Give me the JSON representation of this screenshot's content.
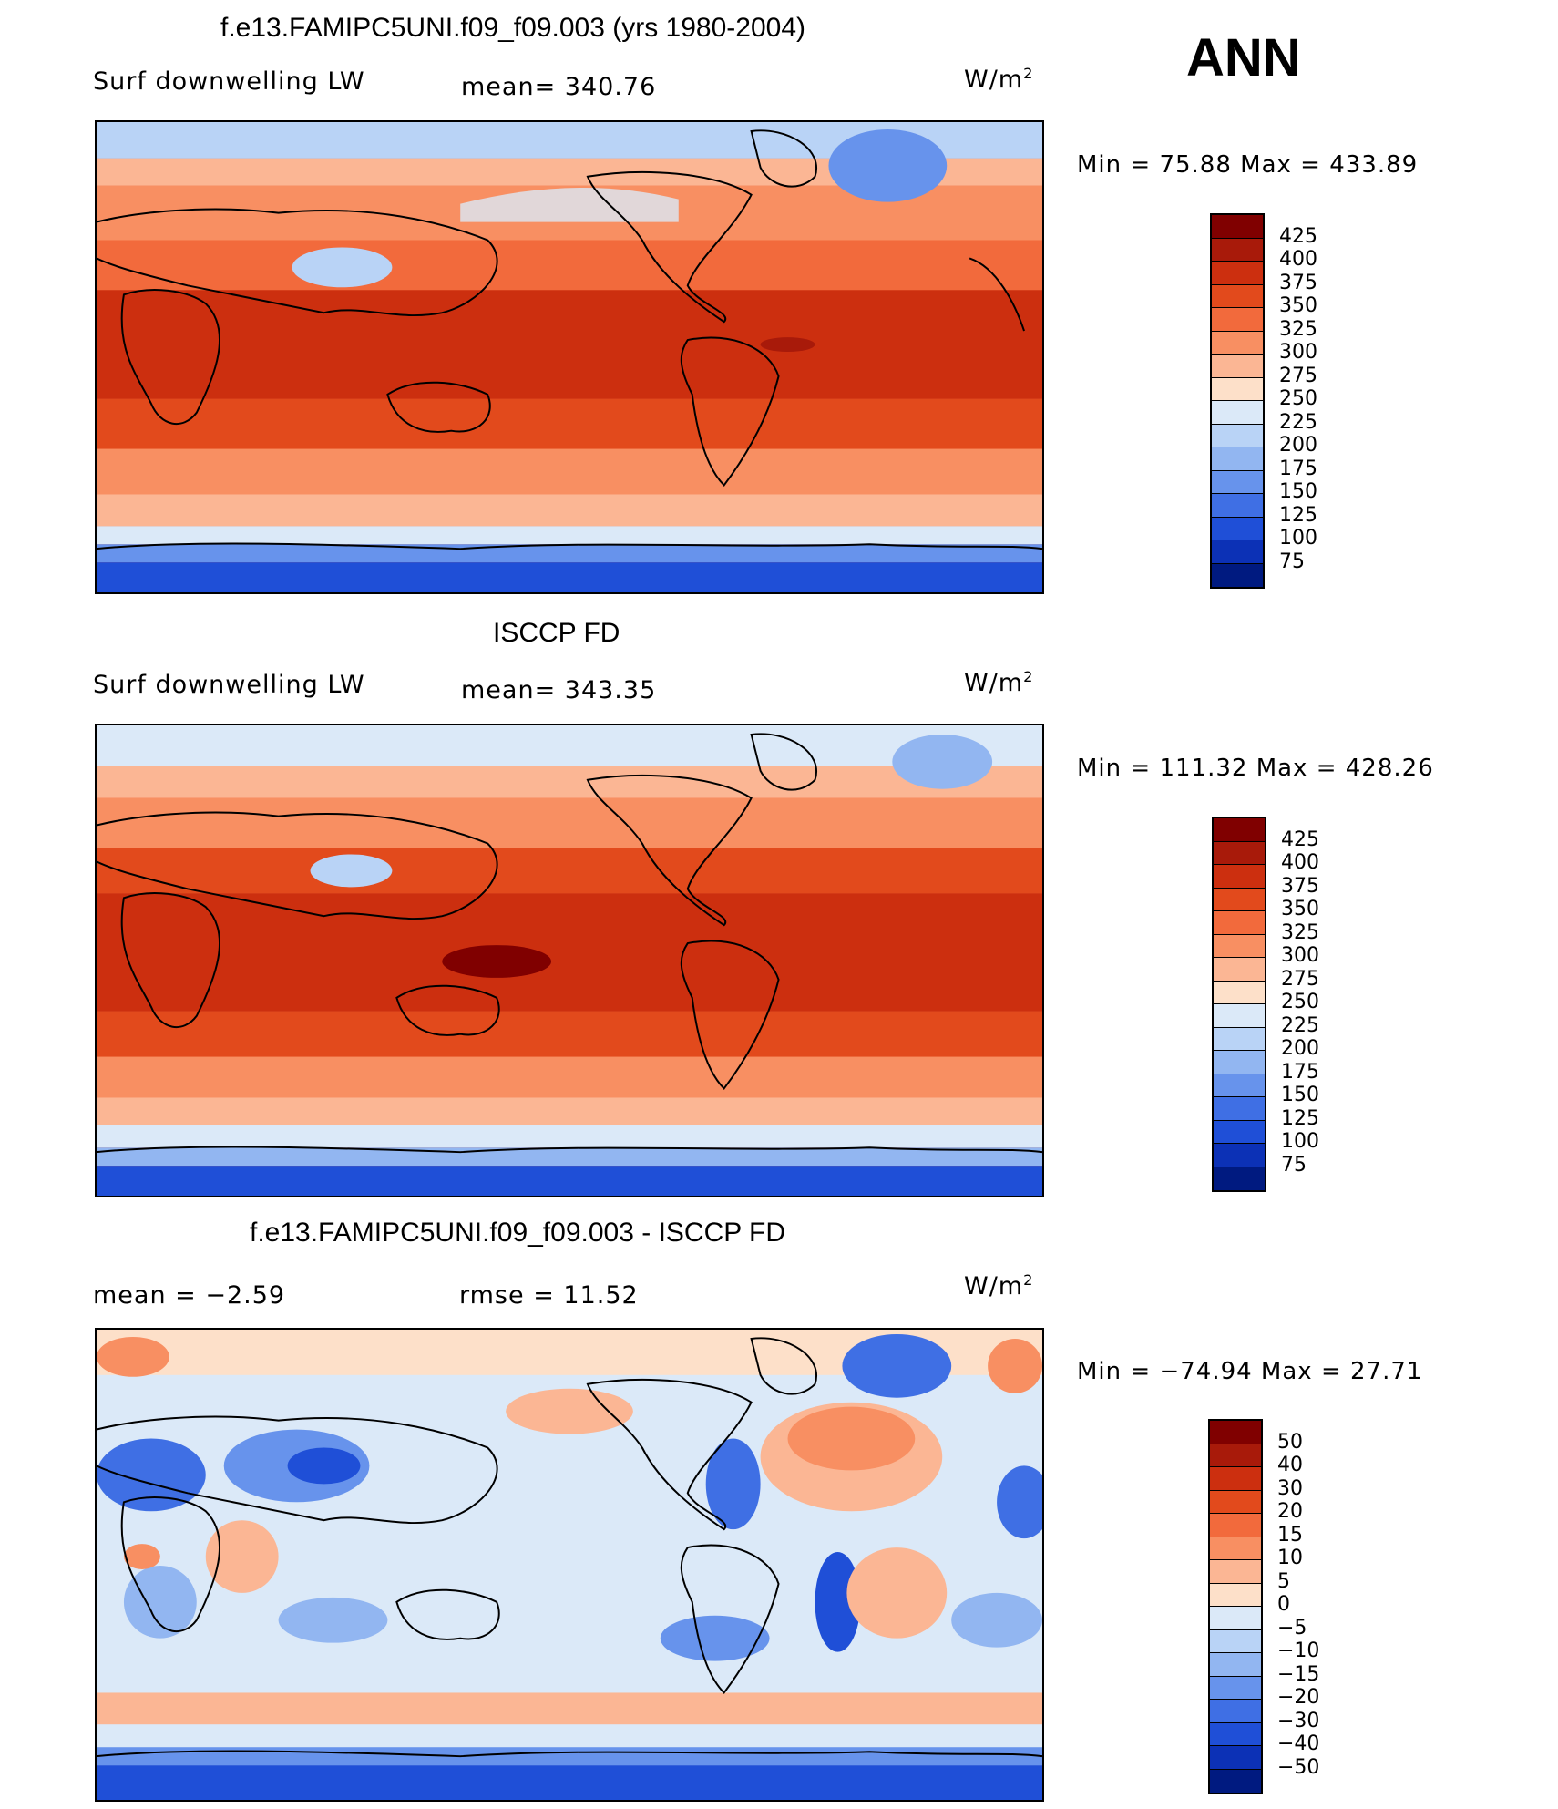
{
  "season": "ANN",
  "panels": [
    {
      "title": "f.e13.FAMIPC5UNI.f09_f09.003 (yrs 1980-2004)",
      "left_label": "Surf  downwelling  LW",
      "center_label": "mean=  340.76",
      "units": "W/m",
      "units_exp": "2",
      "minmax": "Min  =    75.88  Max  =  433.89",
      "colorbar_labels": [
        "425",
        "400",
        "375",
        "350",
        "325",
        "300",
        "275",
        "250",
        "225",
        "200",
        "175",
        "150",
        "125",
        "100",
        "75"
      ],
      "colorbar_colors": [
        "#800000",
        "#a81a0a",
        "#cc2f0f",
        "#e24a1c",
        "#f26a3c",
        "#f88f62",
        "#fbb694",
        "#fde0c9",
        "#dbe9f8",
        "#b9d3f6",
        "#92b6f1",
        "#6793ec",
        "#3f6fe4",
        "#1f4fd7",
        "#0c31b6",
        "#001a80"
      ]
    },
    {
      "title": "ISCCP FD",
      "left_label": "Surf  downwelling  LW",
      "center_label": "mean=  343.35",
      "units": "W/m",
      "units_exp": "2",
      "minmax": "Min  =  111.32  Max  =  428.26",
      "colorbar_labels": [
        "425",
        "400",
        "375",
        "350",
        "325",
        "300",
        "275",
        "250",
        "225",
        "200",
        "175",
        "150",
        "125",
        "100",
        "75"
      ],
      "colorbar_colors": [
        "#800000",
        "#a81a0a",
        "#cc2f0f",
        "#e24a1c",
        "#f26a3c",
        "#f88f62",
        "#fbb694",
        "#fde0c9",
        "#dbe9f8",
        "#b9d3f6",
        "#92b6f1",
        "#6793ec",
        "#3f6fe4",
        "#1f4fd7",
        "#0c31b6",
        "#001a80"
      ]
    },
    {
      "title": "f.e13.FAMIPC5UNI.f09_f09.003 - ISCCP FD",
      "left_label": "mean  =    −2.59",
      "center_label": "rmse  =    11.52",
      "units": "W/m",
      "units_exp": "2",
      "minmax": "Min  =  −74.94  Max  =    27.71",
      "colorbar_labels": [
        "50",
        "40",
        "30",
        "20",
        "15",
        "10",
        "5",
        "0",
        "−5",
        "−10",
        "−15",
        "−20",
        "−30",
        "−40",
        "−50"
      ],
      "colorbar_colors": [
        "#800000",
        "#a81a0a",
        "#cc2f0f",
        "#e24a1c",
        "#f26a3c",
        "#f88f62",
        "#fbb694",
        "#fde0c9",
        "#dbe9f8",
        "#b9d3f6",
        "#92b6f1",
        "#6793ec",
        "#3f6fe4",
        "#1f4fd7",
        "#0c31b6",
        "#001a80"
      ]
    }
  ]
}
